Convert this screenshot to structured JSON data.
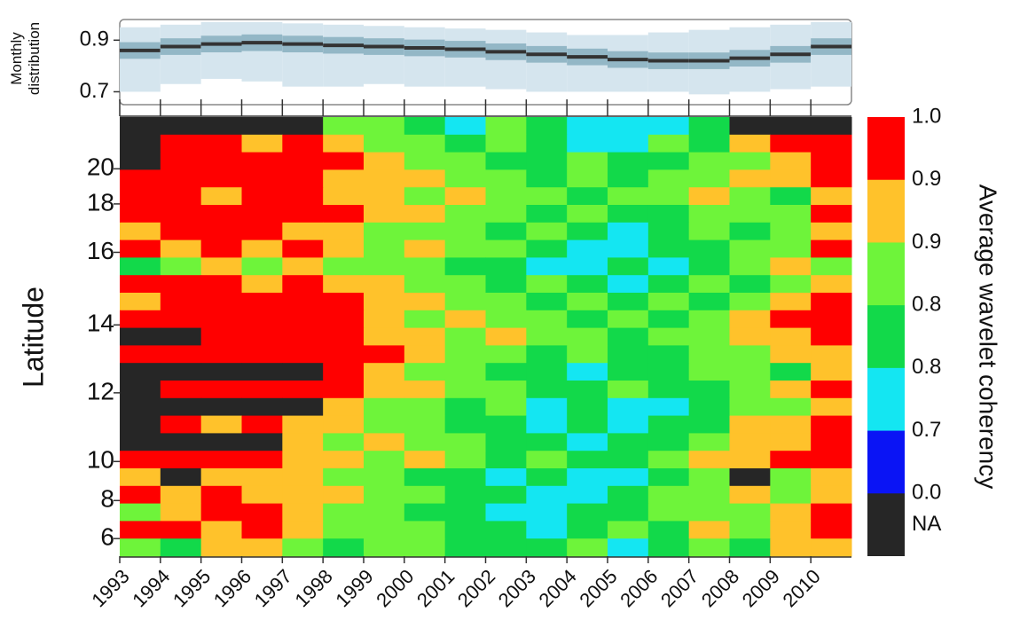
{
  "chart_data": [
    {
      "type": "box",
      "ylabel": [
        "Monthly",
        "distribution"
      ],
      "x": [
        1993,
        1994,
        1995,
        1996,
        1997,
        1998,
        1999,
        2000,
        2001,
        2002,
        2003,
        2004,
        2005,
        2006,
        2007,
        2008,
        2009,
        2010
      ],
      "xlim": [
        1993,
        2011
      ],
      "ylim": [
        0.65,
        0.98
      ],
      "yticks": [
        0.9,
        0.7
      ],
      "low": [
        0.7,
        0.73,
        0.75,
        0.74,
        0.72,
        0.72,
        0.73,
        0.72,
        0.72,
        0.71,
        0.7,
        0.7,
        0.7,
        0.7,
        0.69,
        0.7,
        0.71,
        0.72
      ],
      "q1": [
        0.845,
        0.86,
        0.87,
        0.875,
        0.87,
        0.865,
        0.86,
        0.855,
        0.85,
        0.84,
        0.83,
        0.82,
        0.81,
        0.805,
        0.805,
        0.815,
        0.83,
        0.86
      ],
      "median": [
        0.86,
        0.875,
        0.885,
        0.89,
        0.885,
        0.88,
        0.875,
        0.87,
        0.865,
        0.855,
        0.845,
        0.835,
        0.825,
        0.82,
        0.82,
        0.83,
        0.845,
        0.875
      ],
      "q3": [
        0.875,
        0.89,
        0.9,
        0.905,
        0.9,
        0.895,
        0.89,
        0.885,
        0.88,
        0.87,
        0.86,
        0.85,
        0.84,
        0.835,
        0.835,
        0.845,
        0.86,
        0.89
      ],
      "high": [
        0.95,
        0.96,
        0.97,
        0.97,
        0.965,
        0.96,
        0.955,
        0.95,
        0.945,
        0.94,
        0.93,
        0.92,
        0.92,
        0.93,
        0.94,
        0.95,
        0.96,
        0.97
      ],
      "whisker_color": "#d5e5ee",
      "box_color": "#93b7c6",
      "median_color": "#333333"
    },
    {
      "type": "heatmap",
      "ylabel": "Latitude",
      "x": [
        1993,
        1994,
        1995,
        1996,
        1997,
        1998,
        1999,
        2000,
        2001,
        2002,
        2003,
        2004,
        2005,
        2006,
        2007,
        2008,
        2009,
        2010
      ],
      "xlim": [
        1993,
        2011
      ],
      "xticks": [
        1993,
        1994,
        1995,
        1996,
        1997,
        1998,
        1999,
        2000,
        2001,
        2002,
        2003,
        2004,
        2005,
        2006,
        2007,
        2008,
        2009,
        2010
      ],
      "y": [
        21.6,
        21.0,
        20.4,
        19.5,
        18.4,
        17.5,
        16.8,
        16.1,
        15.6,
        15.1,
        14.6,
        14.2,
        13.6,
        13.1,
        12.6,
        12.1,
        11.6,
        11.1,
        10.6,
        10.1,
        9.2,
        8.3,
        7.4,
        6.5,
        5.5
      ],
      "yticks": [
        20,
        18,
        16,
        14,
        12,
        10,
        8,
        6
      ],
      "values": [
        [
          null,
          null,
          null,
          null,
          null,
          0.86,
          0.86,
          0.81,
          0.77,
          0.86,
          0.81,
          0.77,
          0.77,
          0.77,
          0.81,
          null,
          null,
          null
        ],
        [
          null,
          0.97,
          0.97,
          0.91,
          0.97,
          0.91,
          0.86,
          0.86,
          0.81,
          0.86,
          0.81,
          0.77,
          0.77,
          0.86,
          0.81,
          0.91,
          0.97,
          0.97
        ],
        [
          null,
          0.97,
          0.97,
          0.97,
          0.97,
          0.97,
          0.91,
          0.86,
          0.86,
          0.81,
          0.81,
          0.86,
          0.81,
          0.81,
          0.86,
          0.86,
          0.91,
          0.97
        ],
        [
          0.97,
          0.97,
          0.97,
          0.97,
          0.97,
          0.91,
          0.91,
          0.91,
          0.86,
          0.86,
          0.81,
          0.86,
          0.81,
          0.86,
          0.86,
          0.91,
          0.91,
          0.97
        ],
        [
          0.97,
          0.97,
          0.91,
          0.97,
          0.97,
          0.91,
          0.91,
          0.86,
          0.91,
          0.86,
          0.86,
          0.81,
          0.86,
          0.86,
          0.91,
          0.86,
          0.81,
          0.91
        ],
        [
          0.97,
          0.97,
          0.97,
          0.97,
          0.97,
          0.97,
          0.91,
          0.91,
          0.86,
          0.86,
          0.81,
          0.86,
          0.81,
          0.81,
          0.86,
          0.86,
          0.86,
          0.97
        ],
        [
          0.91,
          0.97,
          0.97,
          0.97,
          0.91,
          0.91,
          0.86,
          0.86,
          0.86,
          0.81,
          0.86,
          0.81,
          0.77,
          0.81,
          0.86,
          0.81,
          0.86,
          0.91
        ],
        [
          0.97,
          0.91,
          0.97,
          0.91,
          0.97,
          0.91,
          0.86,
          0.91,
          0.86,
          0.86,
          0.81,
          0.77,
          0.77,
          0.81,
          0.81,
          0.86,
          0.86,
          0.97
        ],
        [
          0.81,
          0.86,
          0.91,
          0.86,
          0.91,
          0.86,
          0.86,
          0.86,
          0.81,
          0.81,
          0.77,
          0.77,
          0.81,
          0.77,
          0.81,
          0.86,
          0.91,
          0.86
        ],
        [
          0.97,
          0.97,
          0.97,
          0.91,
          0.97,
          0.91,
          0.91,
          0.86,
          0.86,
          0.81,
          0.86,
          0.81,
          0.77,
          0.81,
          0.86,
          0.81,
          0.86,
          0.91
        ],
        [
          0.91,
          0.97,
          0.97,
          0.97,
          0.97,
          0.97,
          0.91,
          0.91,
          0.86,
          0.86,
          0.81,
          0.86,
          0.81,
          0.86,
          0.81,
          0.86,
          0.91,
          0.97
        ],
        [
          0.97,
          0.97,
          0.97,
          0.97,
          0.97,
          0.97,
          0.91,
          0.86,
          0.91,
          0.86,
          0.86,
          0.81,
          0.86,
          0.81,
          0.86,
          0.91,
          0.97,
          0.97
        ],
        [
          null,
          null,
          0.97,
          0.97,
          0.97,
          0.97,
          0.91,
          0.91,
          0.86,
          0.91,
          0.86,
          0.86,
          0.81,
          0.86,
          0.86,
          0.91,
          0.91,
          0.97
        ],
        [
          0.97,
          0.97,
          0.97,
          0.97,
          0.97,
          0.97,
          0.97,
          0.91,
          0.86,
          0.86,
          0.81,
          0.86,
          0.81,
          0.81,
          0.86,
          0.86,
          0.91,
          0.91
        ],
        [
          null,
          null,
          null,
          null,
          null,
          0.97,
          0.91,
          0.86,
          0.86,
          0.81,
          0.81,
          0.77,
          0.81,
          0.81,
          0.86,
          0.86,
          0.81,
          0.91
        ],
        [
          null,
          0.97,
          0.97,
          0.97,
          0.97,
          0.97,
          0.91,
          0.91,
          0.86,
          0.86,
          0.81,
          0.81,
          0.86,
          0.81,
          0.81,
          0.86,
          0.91,
          0.97
        ],
        [
          null,
          null,
          null,
          null,
          null,
          0.91,
          0.86,
          0.86,
          0.81,
          0.86,
          0.77,
          0.81,
          0.77,
          0.77,
          0.81,
          0.86,
          0.86,
          0.91
        ],
        [
          null,
          0.97,
          0.91,
          0.97,
          0.91,
          0.91,
          0.86,
          0.86,
          0.81,
          0.81,
          0.77,
          0.81,
          0.77,
          0.81,
          0.81,
          0.91,
          0.91,
          0.97
        ],
        [
          null,
          null,
          null,
          null,
          0.91,
          0.86,
          0.91,
          0.86,
          0.86,
          0.81,
          0.81,
          0.77,
          0.81,
          0.81,
          0.86,
          0.91,
          0.91,
          0.97
        ],
        [
          0.97,
          0.97,
          0.97,
          0.97,
          0.91,
          0.91,
          0.86,
          0.91,
          0.86,
          0.81,
          0.86,
          0.81,
          0.81,
          0.86,
          0.91,
          0.91,
          0.97,
          0.97
        ],
        [
          0.91,
          null,
          0.91,
          0.91,
          0.91,
          0.86,
          0.86,
          0.81,
          0.81,
          0.77,
          0.81,
          0.77,
          0.77,
          0.81,
          0.86,
          null,
          0.86,
          0.91
        ],
        [
          0.97,
          0.91,
          0.97,
          0.91,
          0.91,
          0.91,
          0.86,
          0.86,
          0.81,
          0.81,
          0.77,
          0.77,
          0.81,
          0.86,
          0.86,
          0.91,
          0.86,
          0.91
        ],
        [
          0.86,
          0.91,
          0.97,
          0.97,
          0.91,
          0.86,
          0.86,
          0.81,
          0.81,
          0.77,
          0.77,
          0.81,
          0.81,
          0.86,
          0.86,
          0.86,
          0.91,
          0.97
        ],
        [
          0.97,
          0.97,
          0.91,
          0.97,
          0.91,
          0.86,
          0.86,
          0.86,
          0.81,
          0.81,
          0.77,
          0.81,
          0.86,
          0.81,
          0.91,
          0.86,
          0.91,
          0.97
        ],
        [
          0.86,
          0.81,
          0.91,
          0.91,
          0.86,
          0.81,
          0.86,
          0.86,
          0.81,
          0.81,
          0.81,
          0.86,
          0.77,
          0.81,
          0.86,
          0.81,
          0.91,
          0.91
        ]
      ],
      "colorbar": {
        "title": "Average wavelet coherency",
        "edges": [
          {
            "value": 1,
            "label": "1.0"
          },
          {
            "value": 0.94,
            "label": "0.9"
          },
          {
            "value": 0.89,
            "label": "0.9"
          },
          {
            "value": 0.84,
            "label": "0.8"
          },
          {
            "value": 0.79,
            "label": "0.8"
          },
          {
            "value": 0.74,
            "label": "0.7"
          },
          {
            "value": 0,
            "label": "0.0"
          }
        ],
        "colors": [
          "#ff0000",
          "#ffc22b",
          "#6ef43a",
          "#12d94a",
          "#14e6f2",
          "#0a14f5"
        ],
        "na_color": "#262626",
        "na_label": "NA"
      }
    }
  ]
}
